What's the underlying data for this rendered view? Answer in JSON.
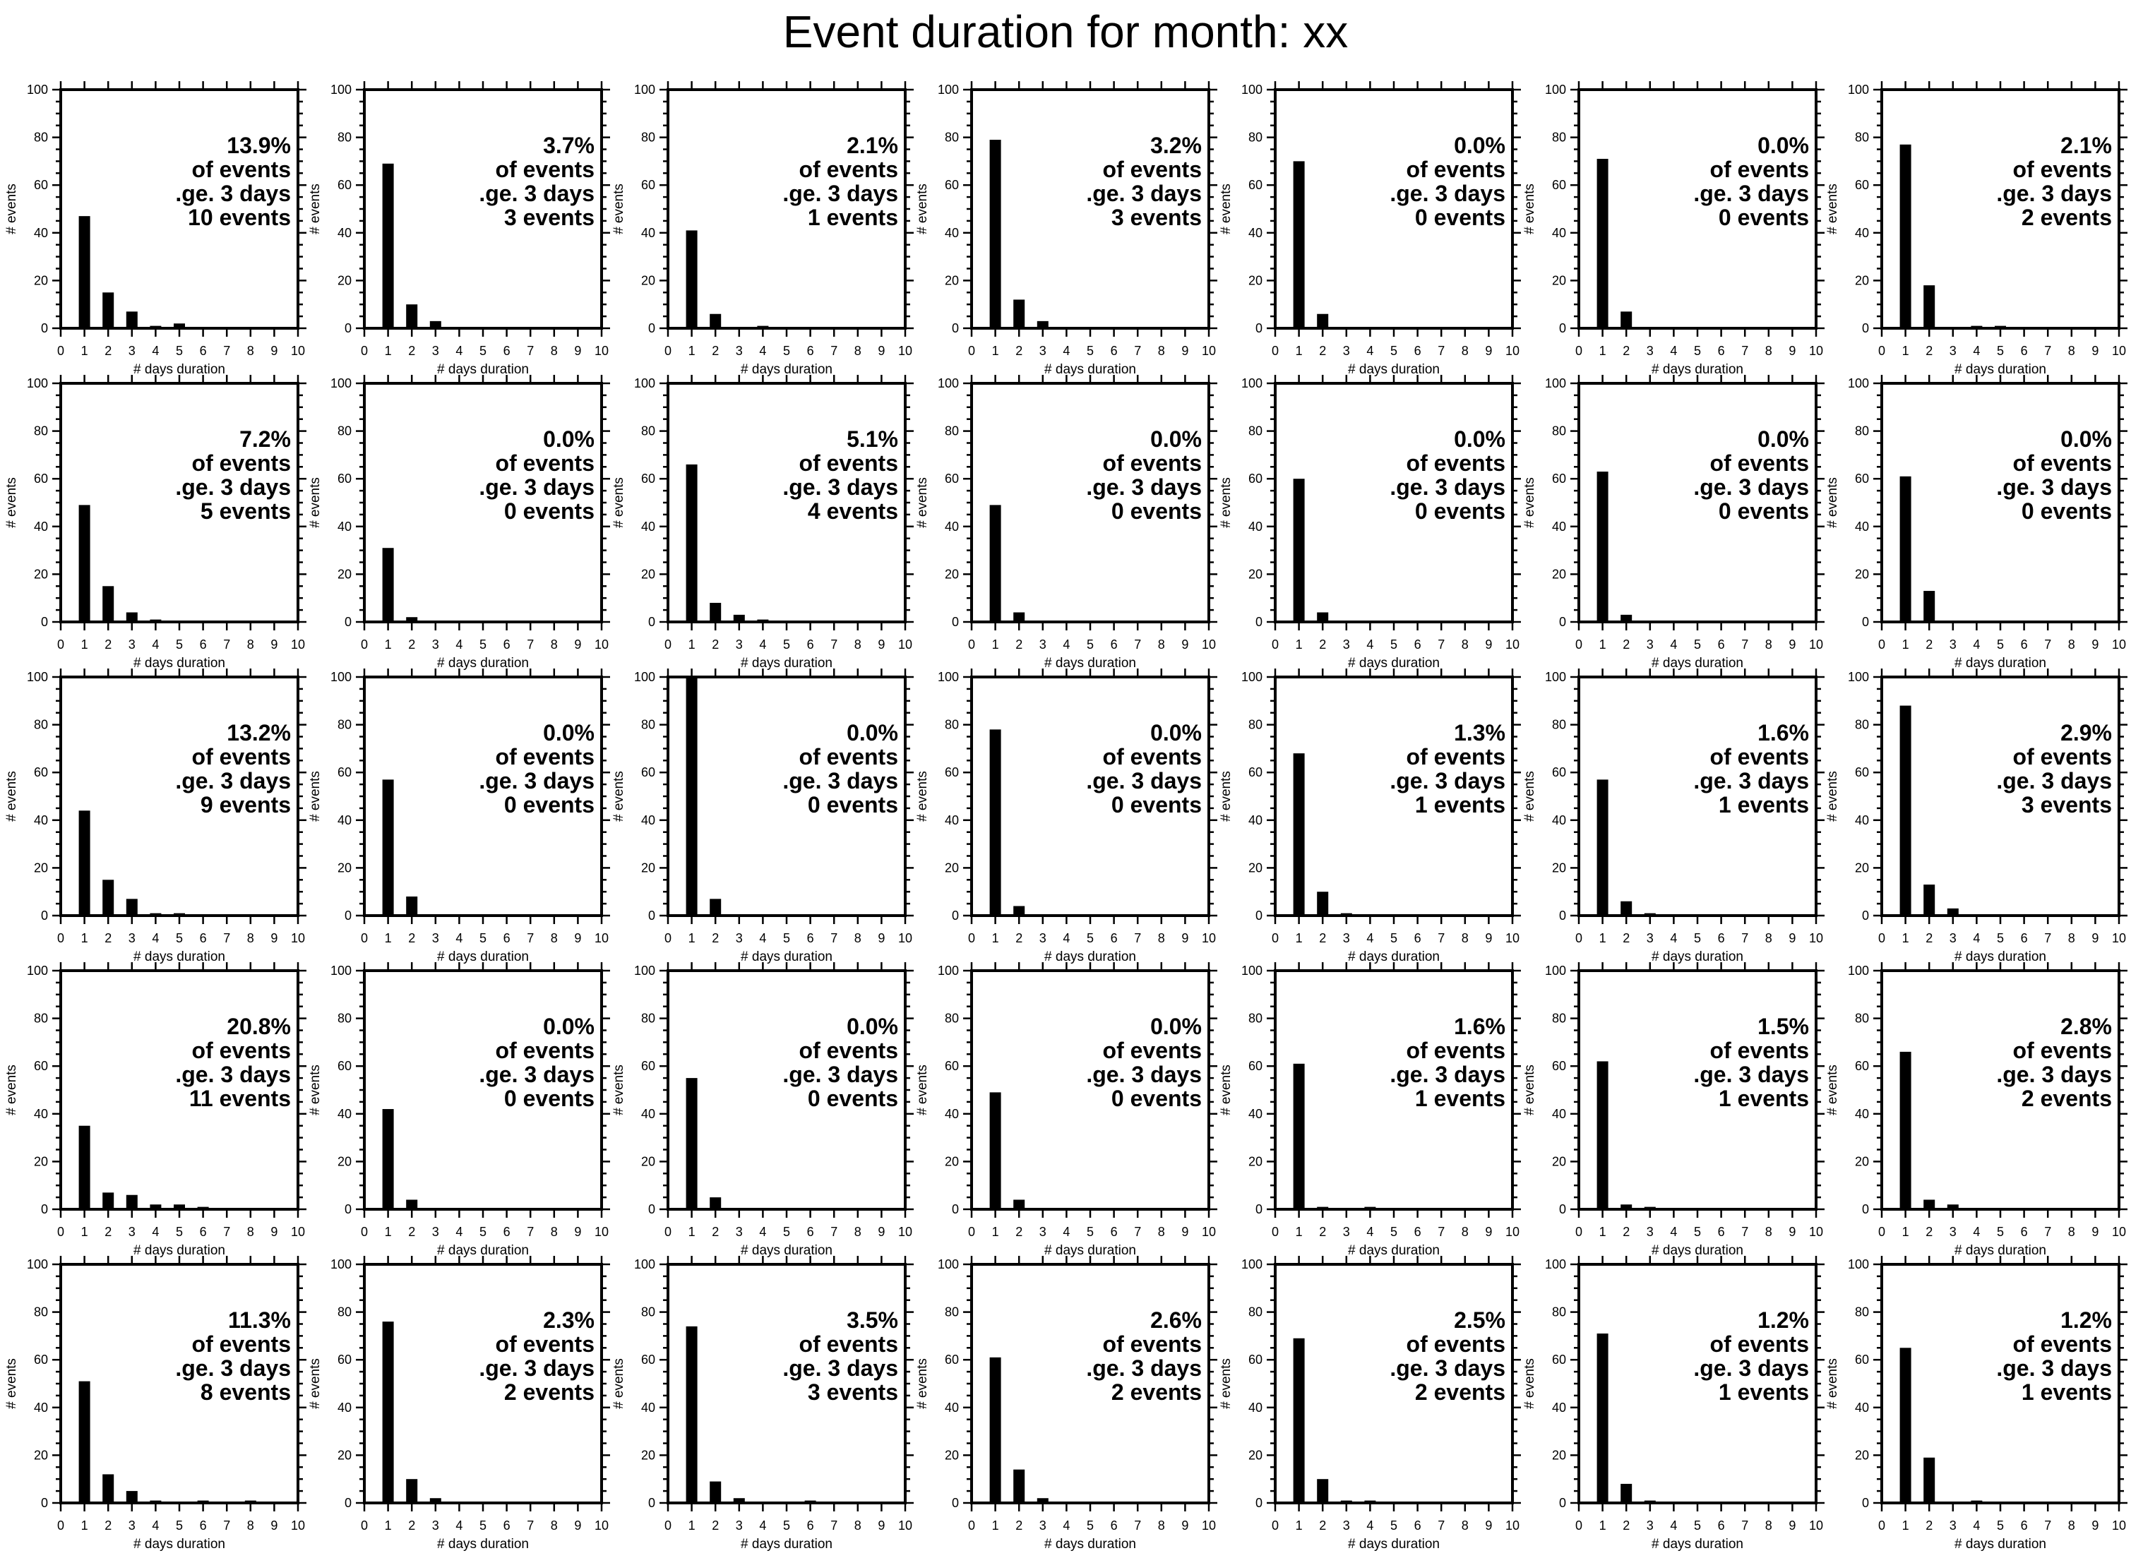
{
  "title": "Event duration for month: xx",
  "chart_data": [
    {
      "type": "bar",
      "x": [
        1,
        2,
        3,
        4,
        5
      ],
      "values": [
        47,
        15,
        7,
        1,
        2
      ],
      "xlabel": "# days duration",
      "ylabel": "# events",
      "xlim": [
        0,
        10
      ],
      "ylim": [
        0,
        100
      ],
      "annotation": [
        "13.9%",
        "of events",
        ".ge. 3 days",
        "10 events"
      ]
    },
    {
      "type": "bar",
      "x": [
        1,
        2,
        3
      ],
      "values": [
        69,
        10,
        3
      ],
      "xlabel": "# days duration",
      "ylabel": "# events",
      "xlim": [
        0,
        10
      ],
      "ylim": [
        0,
        100
      ],
      "annotation": [
        "3.7%",
        "of events",
        ".ge. 3 days",
        "3 events"
      ]
    },
    {
      "type": "bar",
      "x": [
        1,
        2,
        4
      ],
      "values": [
        41,
        6,
        1
      ],
      "xlabel": "# days duration",
      "ylabel": "# events",
      "xlim": [
        0,
        10
      ],
      "ylim": [
        0,
        100
      ],
      "annotation": [
        "2.1%",
        "of events",
        ".ge. 3 days",
        "1 events"
      ]
    },
    {
      "type": "bar",
      "x": [
        1,
        2,
        3
      ],
      "values": [
        79,
        12,
        3
      ],
      "xlabel": "# days duration",
      "ylabel": "# events",
      "xlim": [
        0,
        10
      ],
      "ylim": [
        0,
        100
      ],
      "annotation": [
        "3.2%",
        "of events",
        ".ge. 3 days",
        "3 events"
      ]
    },
    {
      "type": "bar",
      "x": [
        1,
        2
      ],
      "values": [
        70,
        6
      ],
      "xlabel": "# days duration",
      "ylabel": "# events",
      "xlim": [
        0,
        10
      ],
      "ylim": [
        0,
        100
      ],
      "annotation": [
        "0.0%",
        "of events",
        ".ge. 3 days",
        "0 events"
      ]
    },
    {
      "type": "bar",
      "x": [
        1,
        2
      ],
      "values": [
        71,
        7
      ],
      "xlabel": "# days duration",
      "ylabel": "# events",
      "xlim": [
        0,
        10
      ],
      "ylim": [
        0,
        100
      ],
      "annotation": [
        "0.0%",
        "of events",
        ".ge. 3 days",
        "0 events"
      ]
    },
    {
      "type": "bar",
      "x": [
        1,
        2,
        4,
        5
      ],
      "values": [
        77,
        18,
        1,
        1
      ],
      "xlabel": "# days duration",
      "ylabel": "# events",
      "xlim": [
        0,
        10
      ],
      "ylim": [
        0,
        100
      ],
      "annotation": [
        "2.1%",
        "of events",
        ".ge. 3 days",
        "2 events"
      ]
    },
    {
      "type": "bar",
      "x": [
        1,
        2,
        3,
        4
      ],
      "values": [
        49,
        15,
        4,
        1
      ],
      "xlabel": "# days duration",
      "ylabel": "# events",
      "xlim": [
        0,
        10
      ],
      "ylim": [
        0,
        100
      ],
      "annotation": [
        "7.2%",
        "of events",
        ".ge. 3 days",
        "5 events"
      ]
    },
    {
      "type": "bar",
      "x": [
        1,
        2
      ],
      "values": [
        31,
        2
      ],
      "xlabel": "# days duration",
      "ylabel": "# events",
      "xlim": [
        0,
        10
      ],
      "ylim": [
        0,
        100
      ],
      "annotation": [
        "0.0%",
        "of events",
        ".ge. 3 days",
        "0 events"
      ]
    },
    {
      "type": "bar",
      "x": [
        1,
        2,
        3,
        4
      ],
      "values": [
        66,
        8,
        3,
        1
      ],
      "xlabel": "# days duration",
      "ylabel": "# events",
      "xlim": [
        0,
        10
      ],
      "ylim": [
        0,
        100
      ],
      "annotation": [
        "5.1%",
        "of events",
        ".ge. 3 days",
        "4 events"
      ]
    },
    {
      "type": "bar",
      "x": [
        1,
        2
      ],
      "values": [
        49,
        4
      ],
      "xlabel": "# days duration",
      "ylabel": "# events",
      "xlim": [
        0,
        10
      ],
      "ylim": [
        0,
        100
      ],
      "annotation": [
        "0.0%",
        "of events",
        ".ge. 3 days",
        "0 events"
      ]
    },
    {
      "type": "bar",
      "x": [
        1,
        2
      ],
      "values": [
        60,
        4
      ],
      "xlabel": "# days duration",
      "ylabel": "# events",
      "xlim": [
        0,
        10
      ],
      "ylim": [
        0,
        100
      ],
      "annotation": [
        "0.0%",
        "of events",
        ".ge. 3 days",
        "0 events"
      ]
    },
    {
      "type": "bar",
      "x": [
        1,
        2
      ],
      "values": [
        63,
        3
      ],
      "xlabel": "# days duration",
      "ylabel": "# events",
      "xlim": [
        0,
        10
      ],
      "ylim": [
        0,
        100
      ],
      "annotation": [
        "0.0%",
        "of events",
        ".ge. 3 days",
        "0 events"
      ]
    },
    {
      "type": "bar",
      "x": [
        1,
        2
      ],
      "values": [
        61,
        13
      ],
      "xlabel": "# days duration",
      "ylabel": "# events",
      "xlim": [
        0,
        10
      ],
      "ylim": [
        0,
        100
      ],
      "annotation": [
        "0.0%",
        "of events",
        ".ge. 3 days",
        "0 events"
      ]
    },
    {
      "type": "bar",
      "x": [
        1,
        2,
        3,
        4,
        5
      ],
      "values": [
        44,
        15,
        7,
        1,
        1
      ],
      "xlabel": "# days duration",
      "ylabel": "# events",
      "xlim": [
        0,
        10
      ],
      "ylim": [
        0,
        100
      ],
      "annotation": [
        "13.2%",
        "of events",
        ".ge. 3 days",
        "9 events"
      ]
    },
    {
      "type": "bar",
      "x": [
        1,
        2
      ],
      "values": [
        57,
        8
      ],
      "xlabel": "# days duration",
      "ylabel": "# events",
      "xlim": [
        0,
        10
      ],
      "ylim": [
        0,
        100
      ],
      "annotation": [
        "0.0%",
        "of events",
        ".ge. 3 days",
        "0 events"
      ]
    },
    {
      "type": "bar",
      "x": [
        1,
        2
      ],
      "values": [
        100,
        7
      ],
      "xlabel": "# days duration",
      "ylabel": "# events",
      "xlim": [
        0,
        10
      ],
      "ylim": [
        0,
        100
      ],
      "annotation": [
        "0.0%",
        "of events",
        ".ge. 3 days",
        "0 events"
      ]
    },
    {
      "type": "bar",
      "x": [
        1,
        2
      ],
      "values": [
        78,
        4
      ],
      "xlabel": "# days duration",
      "ylabel": "# events",
      "xlim": [
        0,
        10
      ],
      "ylim": [
        0,
        100
      ],
      "annotation": [
        "0.0%",
        "of events",
        ".ge. 3 days",
        "0 events"
      ]
    },
    {
      "type": "bar",
      "x": [
        1,
        2,
        3
      ],
      "values": [
        68,
        10,
        1
      ],
      "xlabel": "# days duration",
      "ylabel": "# events",
      "xlim": [
        0,
        10
      ],
      "ylim": [
        0,
        100
      ],
      "annotation": [
        "1.3%",
        "of events",
        ".ge. 3 days",
        "1 events"
      ]
    },
    {
      "type": "bar",
      "x": [
        1,
        2,
        3
      ],
      "values": [
        57,
        6,
        1
      ],
      "xlabel": "# days duration",
      "ylabel": "# events",
      "xlim": [
        0,
        10
      ],
      "ylim": [
        0,
        100
      ],
      "annotation": [
        "1.6%",
        "of events",
        ".ge. 3 days",
        "1 events"
      ]
    },
    {
      "type": "bar",
      "x": [
        1,
        2,
        3
      ],
      "values": [
        88,
        13,
        3
      ],
      "xlabel": "# days duration",
      "ylabel": "# events",
      "xlim": [
        0,
        10
      ],
      "ylim": [
        0,
        100
      ],
      "annotation": [
        "2.9%",
        "of events",
        ".ge. 3 days",
        "3 events"
      ]
    },
    {
      "type": "bar",
      "x": [
        1,
        2,
        3,
        4,
        5,
        6
      ],
      "values": [
        35,
        7,
        6,
        2,
        2,
        1
      ],
      "xlabel": "# days duration",
      "ylabel": "# events",
      "xlim": [
        0,
        10
      ],
      "ylim": [
        0,
        100
      ],
      "annotation": [
        "20.8%",
        "of events",
        ".ge. 3 days",
        "11 events"
      ]
    },
    {
      "type": "bar",
      "x": [
        1,
        2
      ],
      "values": [
        42,
        4
      ],
      "xlabel": "# days duration",
      "ylabel": "# events",
      "xlim": [
        0,
        10
      ],
      "ylim": [
        0,
        100
      ],
      "annotation": [
        "0.0%",
        "of events",
        ".ge. 3 days",
        "0 events"
      ]
    },
    {
      "type": "bar",
      "x": [
        1,
        2
      ],
      "values": [
        55,
        5
      ],
      "xlabel": "# days duration",
      "ylabel": "# events",
      "xlim": [
        0,
        10
      ],
      "ylim": [
        0,
        100
      ],
      "annotation": [
        "0.0%",
        "of events",
        ".ge. 3 days",
        "0 events"
      ]
    },
    {
      "type": "bar",
      "x": [
        1,
        2
      ],
      "values": [
        49,
        4
      ],
      "xlabel": "# days duration",
      "ylabel": "# events",
      "xlim": [
        0,
        10
      ],
      "ylim": [
        0,
        100
      ],
      "annotation": [
        "0.0%",
        "of events",
        ".ge. 3 days",
        "0 events"
      ]
    },
    {
      "type": "bar",
      "x": [
        1,
        2,
        4
      ],
      "values": [
        61,
        1,
        1
      ],
      "xlabel": "# days duration",
      "ylabel": "# events",
      "xlim": [
        0,
        10
      ],
      "ylim": [
        0,
        100
      ],
      "annotation": [
        "1.6%",
        "of events",
        ".ge. 3 days",
        "1 events"
      ]
    },
    {
      "type": "bar",
      "x": [
        1,
        2,
        3
      ],
      "values": [
        62,
        2,
        1
      ],
      "xlabel": "# days duration",
      "ylabel": "# events",
      "xlim": [
        0,
        10
      ],
      "ylim": [
        0,
        100
      ],
      "annotation": [
        "1.5%",
        "of events",
        ".ge. 3 days",
        "1 events"
      ]
    },
    {
      "type": "bar",
      "x": [
        1,
        2,
        3
      ],
      "values": [
        66,
        4,
        2
      ],
      "xlabel": "# days duration",
      "ylabel": "# events",
      "xlim": [
        0,
        10
      ],
      "ylim": [
        0,
        100
      ],
      "annotation": [
        "2.8%",
        "of events",
        ".ge. 3 days",
        "2 events"
      ]
    },
    {
      "type": "bar",
      "x": [
        1,
        2,
        3,
        4,
        6,
        8
      ],
      "values": [
        51,
        12,
        5,
        1,
        1,
        1
      ],
      "xlabel": "# days duration",
      "ylabel": "# events",
      "xlim": [
        0,
        10
      ],
      "ylim": [
        0,
        100
      ],
      "annotation": [
        "11.3%",
        "of events",
        ".ge. 3 days",
        "8 events"
      ]
    },
    {
      "type": "bar",
      "x": [
        1,
        2,
        3
      ],
      "values": [
        76,
        10,
        2
      ],
      "xlabel": "# days duration",
      "ylabel": "# events",
      "xlim": [
        0,
        10
      ],
      "ylim": [
        0,
        100
      ],
      "annotation": [
        "2.3%",
        "of events",
        ".ge. 3 days",
        "2 events"
      ]
    },
    {
      "type": "bar",
      "x": [
        1,
        2,
        3,
        6
      ],
      "values": [
        74,
        9,
        2,
        1
      ],
      "xlabel": "# days duration",
      "ylabel": "# events",
      "xlim": [
        0,
        10
      ],
      "ylim": [
        0,
        100
      ],
      "annotation": [
        "3.5%",
        "of events",
        ".ge. 3 days",
        "3 events"
      ]
    },
    {
      "type": "bar",
      "x": [
        1,
        2,
        3
      ],
      "values": [
        61,
        14,
        2
      ],
      "xlabel": "# days duration",
      "ylabel": "# events",
      "xlim": [
        0,
        10
      ],
      "ylim": [
        0,
        100
      ],
      "annotation": [
        "2.6%",
        "of events",
        ".ge. 3 days",
        "2 events"
      ]
    },
    {
      "type": "bar",
      "x": [
        1,
        2,
        3,
        4
      ],
      "values": [
        69,
        10,
        1,
        1
      ],
      "xlabel": "# days duration",
      "ylabel": "# events",
      "xlim": [
        0,
        10
      ],
      "ylim": [
        0,
        100
      ],
      "annotation": [
        "2.5%",
        "of events",
        ".ge. 3 days",
        "2 events"
      ]
    },
    {
      "type": "bar",
      "x": [
        1,
        2,
        3
      ],
      "values": [
        71,
        8,
        1
      ],
      "xlabel": "# days duration",
      "ylabel": "# events",
      "xlim": [
        0,
        10
      ],
      "ylim": [
        0,
        100
      ],
      "annotation": [
        "1.2%",
        "of events",
        ".ge. 3 days",
        "1 events"
      ]
    },
    {
      "type": "bar",
      "x": [
        1,
        2,
        4
      ],
      "values": [
        65,
        19,
        1
      ],
      "xlabel": "# days duration",
      "ylabel": "# events",
      "xlim": [
        0,
        10
      ],
      "ylim": [
        0,
        100
      ],
      "annotation": [
        "1.2%",
        "of events",
        ".ge. 3 days",
        "1 events"
      ]
    }
  ]
}
